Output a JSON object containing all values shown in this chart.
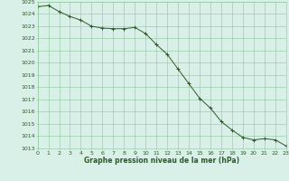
{
  "x": [
    0,
    1,
    2,
    3,
    4,
    5,
    6,
    7,
    8,
    9,
    10,
    11,
    12,
    13,
    14,
    15,
    16,
    17,
    18,
    19,
    20,
    21,
    22,
    23
  ],
  "y": [
    1024.6,
    1024.7,
    1024.2,
    1023.8,
    1023.5,
    1023.0,
    1022.85,
    1022.8,
    1022.8,
    1022.9,
    1022.4,
    1021.5,
    1020.7,
    1019.5,
    1018.3,
    1017.1,
    1016.3,
    1015.2,
    1014.5,
    1013.9,
    1013.7,
    1013.8,
    1013.7,
    1013.2
  ],
  "line_color": "#2d5a27",
  "marker": "+",
  "bg_color": "#d8f0e8",
  "grid_color": "#8fc8a0",
  "text_color": "#2d5a27",
  "xlabel": "Graphe pression niveau de la mer (hPa)",
  "ylim_min": 1013,
  "ylim_max": 1025,
  "xlim_min": 0,
  "xlim_max": 23,
  "ytick_step": 1,
  "xtick_step": 1,
  "tick_fontsize": 4.5,
  "xlabel_fontsize": 5.5,
  "linewidth": 0.7,
  "markersize": 2.5,
  "markeredgewidth": 0.7
}
